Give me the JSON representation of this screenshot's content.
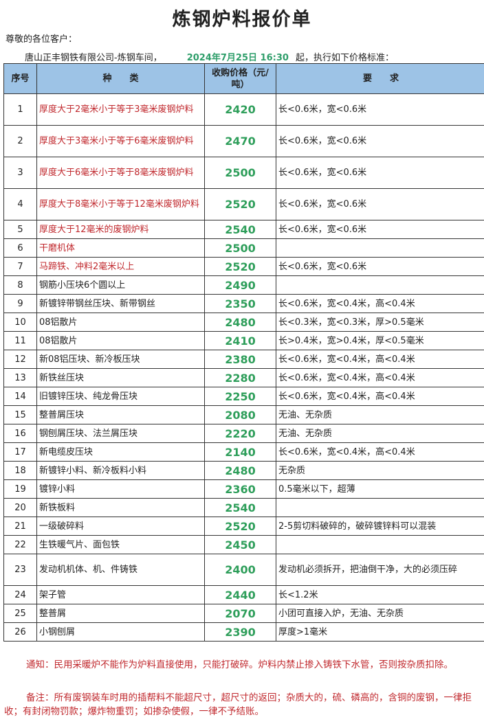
{
  "title": "炼钢炉料报价单",
  "greeting": "尊敬的各位客户：",
  "company": "唐山正丰钢铁有限公司-炼钢车间，",
  "datetime": "2024年7月25日 16:30",
  "effective": "起，执行如下价格标准：",
  "headers": {
    "no": "序号",
    "type": "种　　类",
    "price": "收购价格（元/吨）",
    "req": "要　　求"
  },
  "rows": [
    {
      "no": "1",
      "type": "厚度大于2毫米小于等于3毫米废钢炉料",
      "price": "2420",
      "req": "长<0.6米，宽<0.6米",
      "red": true,
      "tall": true
    },
    {
      "no": "2",
      "type": "厚度大于3毫米小于等于6毫米废钢炉料",
      "price": "2470",
      "req": "长<0.6米，宽<0.6米",
      "red": true,
      "tall": true
    },
    {
      "no": "3",
      "type": "厚度大于6毫米小于等于8毫米废钢炉料",
      "price": "2500",
      "req": "长<0.6米，宽<0.6米",
      "red": true,
      "tall": true
    },
    {
      "no": "4",
      "type": "厚度大于8毫米小于等于12毫米废钢炉料",
      "price": "2520",
      "req": "长<0.6米，宽<0.6米",
      "red": true,
      "tall": true
    },
    {
      "no": "5",
      "type": "厚度大于12毫米的废钢炉料",
      "price": "2540",
      "req": "长<0.6米，宽<0.6米",
      "red": true
    },
    {
      "no": "6",
      "type": "干磨机体",
      "price": "2500",
      "req": "",
      "red": true
    },
    {
      "no": "7",
      "type": "马蹄铁、冲料2毫米以上",
      "price": "2520",
      "req": "长<0.6米，宽<0.6米",
      "red": true
    },
    {
      "no": "8",
      "type": "钢筋小压块6个圆以上",
      "price": "2490",
      "req": ""
    },
    {
      "no": "9",
      "type": "新镀锌带钢丝压块、新带钢丝",
      "price": "2350",
      "req": "长<0.6米，宽<0.4米，高<0.4米"
    },
    {
      "no": "10",
      "type": "08铝散片",
      "price": "2480",
      "req": "长<0.3米，宽<0.3米，厚>0.5毫米"
    },
    {
      "no": "11",
      "type": "08铝散片",
      "price": "2410",
      "req": "长>0.4米，宽>0.4米，厚<0.5毫米"
    },
    {
      "no": "12",
      "type": "新08铝压块、新冷板压块",
      "price": "2380",
      "req": "长<0.6米，宽<0.4米，高<0.4米"
    },
    {
      "no": "13",
      "type": "新铁丝压块",
      "price": "2280",
      "req": "长<0.6米，宽<0.4米，高<0.4米"
    },
    {
      "no": "14",
      "type": "旧镀锌压块、纯龙骨压块",
      "price": "2250",
      "req": "长<0.6米，宽<0.4米，高<0.4米"
    },
    {
      "no": "15",
      "type": "整普屑压块",
      "price": "2080",
      "req": "无油、无杂质"
    },
    {
      "no": "16",
      "type": "钢刨屑压块、法兰屑压块",
      "price": "2220",
      "req": "无油、无杂质"
    },
    {
      "no": "17",
      "type": "新电缆皮压块",
      "price": "2140",
      "req": "长<0.6米，宽<0.4米，高<0.4米"
    },
    {
      "no": "18",
      "type": "新镀锌小料、新冷板料小料",
      "price": "2480",
      "req": "无杂质"
    },
    {
      "no": "19",
      "type": "镀锌小料",
      "price": "2360",
      "req": "0.5毫米以下，超薄"
    },
    {
      "no": "20",
      "type": "新铁板料",
      "price": "2540",
      "req": ""
    },
    {
      "no": "21",
      "type": "一级破碎料",
      "price": "2520",
      "req": "2-5剪切料破碎的，破碎镀锌料可以混装"
    },
    {
      "no": "22",
      "type": "生铁暖气片、面包铁",
      "price": "2450",
      "req": ""
    },
    {
      "no": "23",
      "type": "发动机机体、机、件铸铁",
      "price": "2400",
      "req": "发动机必须拆开，把油倒干净，大的必须压碎",
      "tall": true
    },
    {
      "no": "24",
      "type": "架子管",
      "price": "2440",
      "req": "长<1.2米"
    },
    {
      "no": "25",
      "type": "整普屑",
      "price": "2070",
      "req": "小团可直接入炉，无油、无杂质"
    },
    {
      "no": "26",
      "type": "小钢刨屑",
      "price": "2390",
      "req": "厚度>1毫米"
    }
  ],
  "notice": "通知：民用采暖炉不能作为炉料直接使用，只能打破碎。炉料内禁止掺入铸铁下水管，否则按杂质扣除。",
  "remark": "备注：所有废钢装车时用的插帮料不能超尺寸，超尺寸的返回；杂质大的，硫、磷高的，含铜的废钢，一律拒收；有封闭物罚款；爆炸物重罚；如掺杂使假，一律不予结账。",
  "colors": {
    "header_bg": "#9dc3e6",
    "price": "#2e9e5a",
    "red": "#c0282d"
  }
}
